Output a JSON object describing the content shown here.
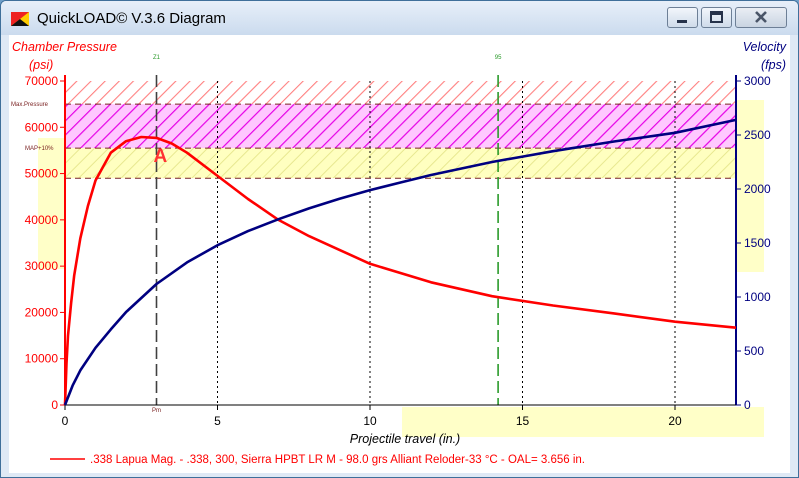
{
  "window": {
    "title": "QuickLOAD© V.3.6 Diagram"
  },
  "chart_data": {
    "type": "line",
    "left_axis": {
      "title": "Chamber Pressure",
      "unit": "(psi)",
      "ylim": [
        0,
        70000
      ],
      "ticks": [
        "0",
        "10000",
        "20000",
        "30000",
        "40000",
        "50000",
        "60000",
        "70000"
      ],
      "color": "#ff0000"
    },
    "right_axis": {
      "title": "Velocity",
      "unit": "(fps)",
      "ylim": [
        0,
        3000
      ],
      "ticks": [
        "0",
        "500",
        "1000",
        "1500",
        "2000",
        "2500",
        "3000"
      ],
      "color": "#000080"
    },
    "x_axis": {
      "label": "Projectile travel (in.)",
      "xlim": [
        0,
        22
      ],
      "ticks": [
        "0",
        "5",
        "10",
        "15",
        "20"
      ]
    },
    "pressure_limits": {
      "max_pressure_label": "Max.Pressure",
      "map_label": "MAP+10%",
      "upper": 65000,
      "map": 55500,
      "lower": 49000,
      "top_band": 70000
    },
    "marker_lines": [
      {
        "label": "Z1",
        "x": 3.0,
        "bottom_label": "Pm"
      },
      {
        "label": "95",
        "x": 14.2
      }
    ],
    "annotation": {
      "text": "A",
      "x": 3.1,
      "y": 54000
    },
    "series": [
      {
        "name": "pressure",
        "axis": "left",
        "color": "#ff0000",
        "x": [
          0,
          0.05,
          0.1,
          0.2,
          0.3,
          0.5,
          0.75,
          1,
          1.5,
          2,
          2.5,
          3,
          3.5,
          4,
          5,
          6,
          7,
          8,
          9,
          10,
          12,
          14,
          16,
          18,
          20,
          22
        ],
        "y": [
          0,
          9000,
          15000,
          22000,
          28000,
          36000,
          43000,
          48500,
          54500,
          57000,
          57900,
          57700,
          56500,
          54500,
          49500,
          44500,
          40000,
          36500,
          33500,
          30500,
          26500,
          23500,
          21500,
          19800,
          18000,
          16700
        ]
      },
      {
        "name": "velocity",
        "axis": "right",
        "color": "#000080",
        "x": [
          0,
          0.25,
          0.5,
          1,
          1.5,
          2,
          3,
          4,
          5,
          6,
          7,
          8,
          9,
          10,
          11,
          12,
          13,
          14,
          15,
          16,
          18,
          20,
          22
        ],
        "y": [
          0,
          180,
          320,
          530,
          700,
          860,
          1120,
          1320,
          1480,
          1610,
          1720,
          1820,
          1910,
          1990,
          2060,
          2130,
          2190,
          2250,
          2300,
          2350,
          2440,
          2520,
          2640
        ]
      }
    ],
    "legend": {
      "text": ".338 Lapua Mag. - .338, 300, Sierra HPBT LR M - 98.0 grs Alliant Reloder-33 °C - OAL= 3.656 in."
    }
  }
}
